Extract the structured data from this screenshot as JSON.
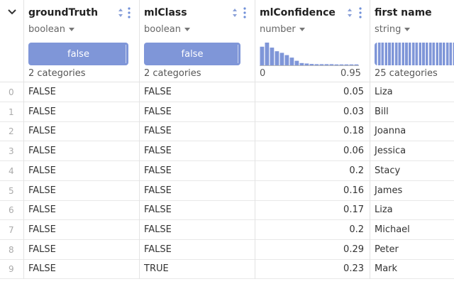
{
  "columns": [
    {
      "name": "groundTruth",
      "type": "boolean",
      "summary_bar": "false",
      "summary_count": "2 categories"
    },
    {
      "name": "mlClass",
      "type": "boolean",
      "summary_bar": "false",
      "summary_count": "2 categories"
    },
    {
      "name": "mlConfidence",
      "type": "number",
      "hist_min": "0",
      "hist_max": "0.95",
      "hist_bins": [
        0.82,
        1.0,
        0.78,
        0.62,
        0.55,
        0.45,
        0.34,
        0.2,
        0.1,
        0.08,
        0.06,
        0.05,
        0.05,
        0.05,
        0.05,
        0.04,
        0.04,
        0.04,
        0.04,
        0.04
      ]
    },
    {
      "name": "first name",
      "type": "string",
      "summary_count": "25 categories"
    }
  ],
  "rows": [
    {
      "index": "0",
      "groundTruth": "FALSE",
      "mlClass": "FALSE",
      "mlConfidence": "0.05",
      "first_name": "Liza"
    },
    {
      "index": "1",
      "groundTruth": "FALSE",
      "mlClass": "FALSE",
      "mlConfidence": "0.03",
      "first_name": "Bill"
    },
    {
      "index": "2",
      "groundTruth": "FALSE",
      "mlClass": "FALSE",
      "mlConfidence": "0.18",
      "first_name": "Joanna"
    },
    {
      "index": "3",
      "groundTruth": "FALSE",
      "mlClass": "FALSE",
      "mlConfidence": "0.06",
      "first_name": "Jessica"
    },
    {
      "index": "4",
      "groundTruth": "FALSE",
      "mlClass": "FALSE",
      "mlConfidence": "0.2",
      "first_name": "Stacy"
    },
    {
      "index": "5",
      "groundTruth": "FALSE",
      "mlClass": "FALSE",
      "mlConfidence": "0.16",
      "first_name": "James"
    },
    {
      "index": "6",
      "groundTruth": "FALSE",
      "mlClass": "FALSE",
      "mlConfidence": "0.17",
      "first_name": "Liza"
    },
    {
      "index": "7",
      "groundTruth": "FALSE",
      "mlClass": "FALSE",
      "mlConfidence": "0.2",
      "first_name": "Michael"
    },
    {
      "index": "8",
      "groundTruth": "FALSE",
      "mlClass": "FALSE",
      "mlConfidence": "0.29",
      "first_name": "Peter"
    },
    {
      "index": "9",
      "groundTruth": "FALSE",
      "mlClass": "TRUE",
      "mlConfidence": "0.23",
      "first_name": "Mark"
    }
  ],
  "colors": {
    "accent": "#7f96d8",
    "border": "#e3e3e3"
  }
}
